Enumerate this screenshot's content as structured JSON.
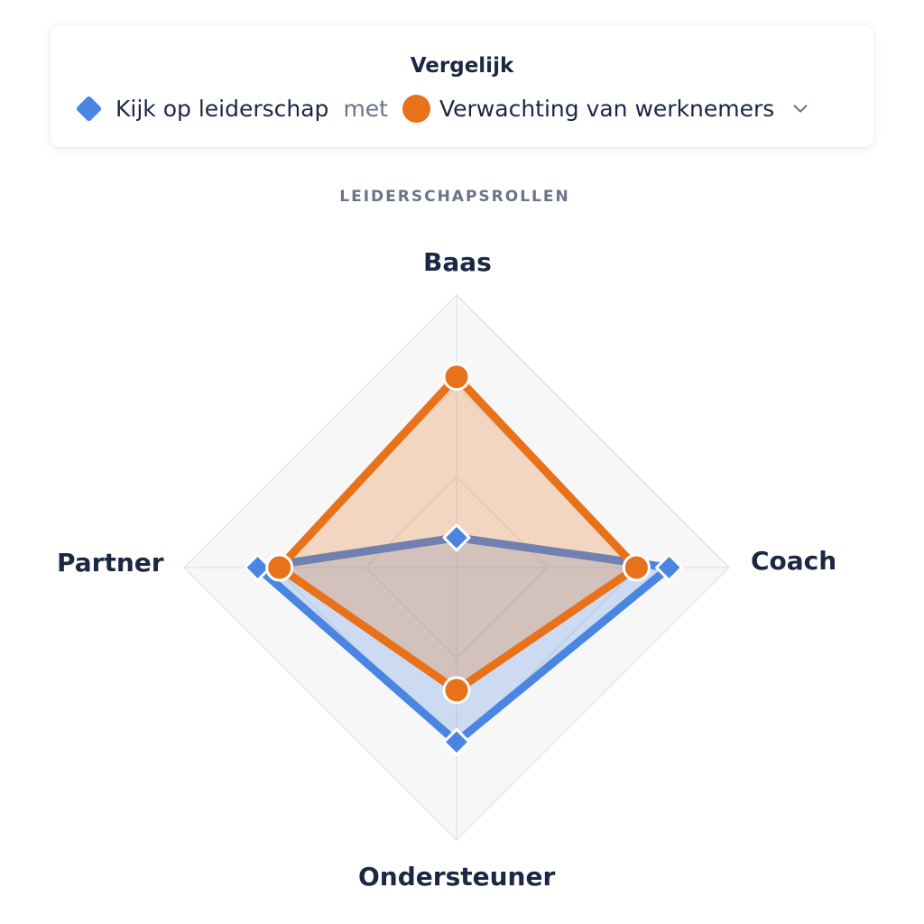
{
  "compare": {
    "title": "Vergelijk",
    "series_a_label": "Kijk op leiderschap",
    "connector": "met",
    "series_b_label": "Verwachting van werknemers"
  },
  "colors": {
    "series_a": "#4a86e1",
    "series_a_fill": "rgba(74,134,225,0.25)",
    "series_b": "#e8721a",
    "series_b_fill": "rgba(232,114,26,0.25)",
    "grid": "#e3e5ea",
    "grid_fill": "#f7f7f8"
  },
  "chart_data": {
    "type": "radar",
    "title": "LEIDERSCHAPSROLLEN",
    "axes": [
      "Baas",
      "Coach",
      "Ondersteuner",
      "Partner"
    ],
    "range": [
      0,
      100
    ],
    "grid_levels": 3,
    "series": [
      {
        "name": "Kijk op leiderschap",
        "marker": "diamond",
        "values": [
          11,
          78,
          64,
          73
        ]
      },
      {
        "name": "Verwachting van werknemers",
        "marker": "circle",
        "values": [
          70,
          66,
          45,
          65
        ]
      }
    ]
  }
}
